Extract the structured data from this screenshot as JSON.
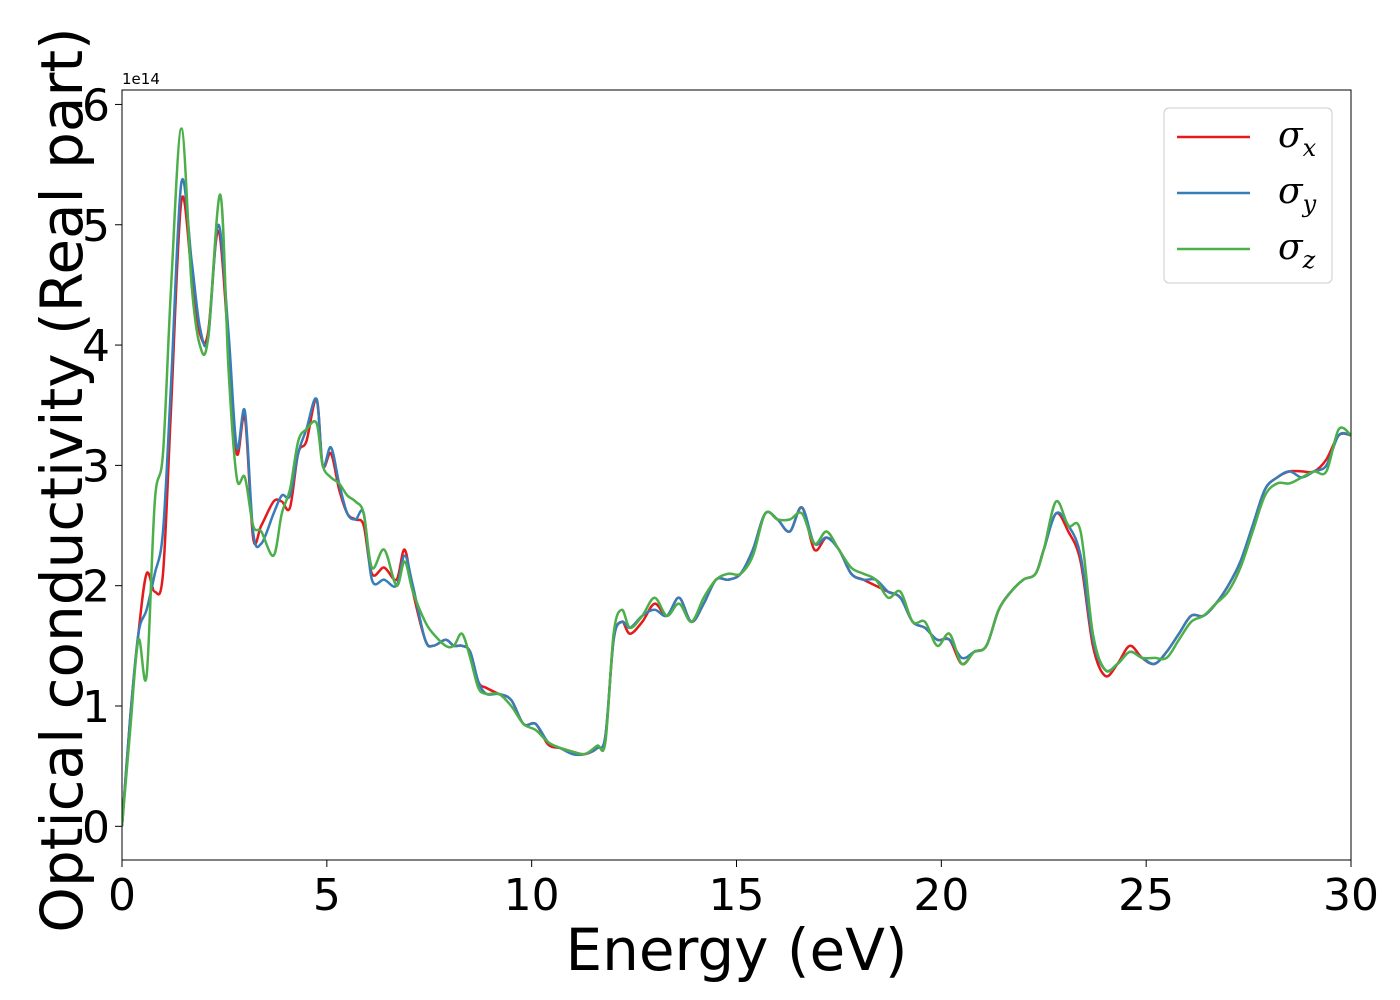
{
  "chart_data": {
    "type": "line",
    "title": "",
    "xlabel": "Energy (eV)",
    "ylabel": "Optical conductivity (Real part)",
    "y_offset_label": "1e14",
    "xlim": [
      0,
      30
    ],
    "ylim": [
      -0.28,
      6.12
    ],
    "xticks": [
      0,
      5,
      10,
      15,
      20,
      25,
      30
    ],
    "yticks": [
      0,
      1,
      2,
      3,
      4,
      5,
      6
    ],
    "xtick_labels": [
      "0",
      "5",
      "10",
      "15",
      "20",
      "25",
      "30"
    ],
    "ytick_labels": [
      "0",
      "1",
      "2",
      "3",
      "4",
      "5",
      "6"
    ],
    "grid": false,
    "legend_position": "top-right",
    "series": [
      {
        "name": "σx",
        "symbol": "σ",
        "subscript": "x",
        "color": "#e41a1c",
        "x": [
          0,
          0.2,
          0.4,
          0.6,
          0.8,
          1.0,
          1.2,
          1.45,
          1.7,
          1.9,
          2.1,
          2.35,
          2.6,
          2.8,
          3.0,
          3.2,
          3.4,
          3.7,
          3.9,
          4.1,
          4.3,
          4.5,
          4.75,
          4.9,
          5.1,
          5.3,
          5.5,
          5.7,
          5.9,
          6.1,
          6.4,
          6.7,
          6.9,
          7.1,
          7.4,
          7.6,
          7.9,
          8.1,
          8.3,
          8.5,
          8.7,
          8.9,
          9.2,
          9.5,
          9.8,
          10.1,
          10.4,
          10.7,
          11.0,
          11.3,
          11.6,
          11.8,
          12.0,
          12.2,
          12.4,
          12.7,
          13.0,
          13.3,
          13.6,
          13.9,
          14.2,
          14.5,
          14.8,
          15.1,
          15.4,
          15.7,
          16.0,
          16.3,
          16.6,
          16.9,
          17.2,
          17.5,
          17.8,
          18.1,
          18.4,
          18.7,
          19.0,
          19.3,
          19.6,
          19.9,
          20.2,
          20.5,
          20.8,
          21.1,
          21.4,
          21.7,
          22.0,
          22.3,
          22.5,
          22.8,
          23.1,
          23.4,
          23.7,
          24.0,
          24.3,
          24.6,
          24.9,
          25.2,
          25.5,
          25.8,
          26.1,
          26.4,
          26.7,
          27.0,
          27.3,
          27.6,
          27.9,
          28.2,
          28.5,
          28.8,
          29.1,
          29.4,
          29.7,
          30.0
        ],
        "y": [
          0,
          0.9,
          1.6,
          2.1,
          1.95,
          2.1,
          3.5,
          5.2,
          4.6,
          4.1,
          4.1,
          4.95,
          4.0,
          3.1,
          3.4,
          2.4,
          2.5,
          2.7,
          2.7,
          2.65,
          3.1,
          3.2,
          3.55,
          3.0,
          3.1,
          2.8,
          2.6,
          2.55,
          2.5,
          2.1,
          2.15,
          2.05,
          2.3,
          1.95,
          1.55,
          1.5,
          1.55,
          1.5,
          1.5,
          1.45,
          1.2,
          1.15,
          1.1,
          1.05,
          0.85,
          0.85,
          0.68,
          0.65,
          0.62,
          0.6,
          0.65,
          0.75,
          1.55,
          1.7,
          1.6,
          1.7,
          1.85,
          1.75,
          1.9,
          1.7,
          1.85,
          2.05,
          2.05,
          2.1,
          2.3,
          2.6,
          2.55,
          2.45,
          2.65,
          2.3,
          2.4,
          2.3,
          2.1,
          2.05,
          2.0,
          1.95,
          1.9,
          1.7,
          1.65,
          1.55,
          1.55,
          1.35,
          1.45,
          1.5,
          1.8,
          1.95,
          2.05,
          2.1,
          2.3,
          2.6,
          2.45,
          2.2,
          1.5,
          1.25,
          1.35,
          1.5,
          1.4,
          1.35,
          1.45,
          1.6,
          1.75,
          1.75,
          1.85,
          2.0,
          2.2,
          2.5,
          2.8,
          2.9,
          2.95,
          2.95,
          2.95,
          3.05,
          3.25,
          3.25
        ]
      },
      {
        "name": "σy",
        "symbol": "σ",
        "subscript": "y",
        "color": "#377eb8",
        "x": [
          0,
          0.2,
          0.4,
          0.6,
          0.8,
          1.0,
          1.2,
          1.45,
          1.7,
          1.9,
          2.1,
          2.35,
          2.6,
          2.8,
          3.0,
          3.2,
          3.4,
          3.7,
          3.9,
          4.1,
          4.3,
          4.5,
          4.75,
          4.9,
          5.1,
          5.3,
          5.5,
          5.7,
          5.9,
          6.1,
          6.4,
          6.7,
          6.9,
          7.1,
          7.4,
          7.6,
          7.9,
          8.1,
          8.3,
          8.5,
          8.7,
          8.9,
          9.2,
          9.5,
          9.8,
          10.1,
          10.4,
          10.7,
          11.0,
          11.3,
          11.6,
          11.8,
          12.0,
          12.2,
          12.4,
          12.7,
          13.0,
          13.3,
          13.6,
          13.9,
          14.2,
          14.5,
          14.8,
          15.1,
          15.4,
          15.7,
          16.0,
          16.3,
          16.6,
          16.9,
          17.2,
          17.5,
          17.8,
          18.1,
          18.4,
          18.7,
          19.0,
          19.3,
          19.6,
          19.9,
          20.2,
          20.5,
          20.8,
          21.1,
          21.4,
          21.7,
          22.0,
          22.3,
          22.5,
          22.8,
          23.1,
          23.4,
          23.7,
          24.0,
          24.3,
          24.6,
          24.9,
          25.2,
          25.5,
          25.8,
          26.1,
          26.4,
          26.7,
          27.0,
          27.3,
          27.6,
          27.9,
          28.2,
          28.5,
          28.8,
          29.1,
          29.4,
          29.7,
          30.0
        ],
        "y": [
          0,
          0.9,
          1.6,
          1.8,
          2.1,
          2.45,
          3.7,
          5.35,
          4.7,
          4.15,
          4.05,
          5.0,
          4.1,
          3.15,
          3.45,
          2.45,
          2.35,
          2.6,
          2.75,
          2.75,
          3.1,
          3.3,
          3.55,
          3.0,
          3.15,
          2.85,
          2.6,
          2.55,
          2.6,
          2.05,
          2.05,
          2.0,
          2.25,
          2.0,
          1.55,
          1.5,
          1.55,
          1.5,
          1.5,
          1.45,
          1.2,
          1.1,
          1.1,
          1.05,
          0.85,
          0.85,
          0.7,
          0.65,
          0.6,
          0.6,
          0.65,
          0.75,
          1.55,
          1.7,
          1.65,
          1.75,
          1.8,
          1.75,
          1.9,
          1.7,
          1.85,
          2.05,
          2.05,
          2.1,
          2.3,
          2.6,
          2.55,
          2.45,
          2.65,
          2.35,
          2.4,
          2.3,
          2.1,
          2.05,
          2.05,
          1.95,
          1.9,
          1.7,
          1.65,
          1.55,
          1.55,
          1.4,
          1.45,
          1.5,
          1.8,
          1.95,
          2.05,
          2.1,
          2.3,
          2.6,
          2.5,
          2.25,
          1.55,
          1.3,
          1.35,
          1.45,
          1.4,
          1.35,
          1.45,
          1.6,
          1.75,
          1.75,
          1.85,
          2.0,
          2.2,
          2.5,
          2.8,
          2.9,
          2.95,
          2.9,
          2.95,
          3.0,
          3.25,
          3.25
        ]
      },
      {
        "name": "σz",
        "symbol": "σ",
        "subscript": "z",
        "color": "#4daf4a",
        "x": [
          0,
          0.2,
          0.4,
          0.6,
          0.8,
          1.0,
          1.2,
          1.45,
          1.7,
          1.9,
          2.1,
          2.4,
          2.6,
          2.8,
          3.0,
          3.2,
          3.4,
          3.7,
          3.9,
          4.1,
          4.3,
          4.5,
          4.75,
          4.9,
          5.1,
          5.3,
          5.5,
          5.7,
          5.9,
          6.1,
          6.4,
          6.7,
          6.9,
          7.1,
          7.4,
          7.6,
          7.9,
          8.1,
          8.3,
          8.5,
          8.7,
          8.9,
          9.2,
          9.5,
          9.8,
          10.1,
          10.4,
          10.7,
          11.0,
          11.3,
          11.6,
          11.8,
          12.0,
          12.2,
          12.4,
          12.7,
          13.0,
          13.3,
          13.6,
          13.9,
          14.2,
          14.5,
          14.8,
          15.1,
          15.4,
          15.7,
          16.0,
          16.3,
          16.6,
          16.9,
          17.2,
          17.5,
          17.8,
          18.1,
          18.4,
          18.7,
          19.0,
          19.3,
          19.6,
          19.9,
          20.2,
          20.5,
          20.8,
          21.1,
          21.4,
          21.7,
          22.0,
          22.3,
          22.5,
          22.8,
          23.1,
          23.4,
          23.7,
          24.0,
          24.3,
          24.6,
          24.9,
          25.2,
          25.5,
          25.8,
          26.1,
          26.4,
          26.7,
          27.0,
          27.3,
          27.6,
          27.9,
          28.2,
          28.5,
          28.8,
          29.1,
          29.4,
          29.7,
          30.0
        ],
        "y": [
          0,
          0.8,
          1.55,
          1.25,
          2.7,
          3.1,
          4.5,
          5.8,
          4.5,
          4.0,
          4.05,
          5.25,
          3.8,
          2.9,
          2.9,
          2.5,
          2.45,
          2.25,
          2.6,
          2.8,
          3.2,
          3.3,
          3.35,
          3.0,
          2.9,
          2.85,
          2.75,
          2.7,
          2.6,
          2.15,
          2.3,
          2.0,
          2.2,
          1.95,
          1.7,
          1.6,
          1.5,
          1.5,
          1.6,
          1.4,
          1.15,
          1.1,
          1.1,
          1.0,
          0.85,
          0.8,
          0.7,
          0.65,
          0.62,
          0.6,
          0.67,
          0.7,
          1.6,
          1.8,
          1.65,
          1.75,
          1.9,
          1.75,
          1.85,
          1.7,
          1.9,
          2.05,
          2.1,
          2.1,
          2.25,
          2.6,
          2.55,
          2.55,
          2.6,
          2.35,
          2.45,
          2.3,
          2.15,
          2.1,
          2.05,
          1.9,
          1.95,
          1.7,
          1.7,
          1.5,
          1.6,
          1.35,
          1.45,
          1.5,
          1.8,
          1.95,
          2.05,
          2.1,
          2.3,
          2.7,
          2.5,
          2.45,
          1.6,
          1.3,
          1.35,
          1.45,
          1.4,
          1.4,
          1.4,
          1.55,
          1.7,
          1.75,
          1.85,
          1.95,
          2.15,
          2.45,
          2.75,
          2.85,
          2.85,
          2.9,
          2.95,
          2.95,
          3.3,
          3.25
        ]
      }
    ]
  }
}
